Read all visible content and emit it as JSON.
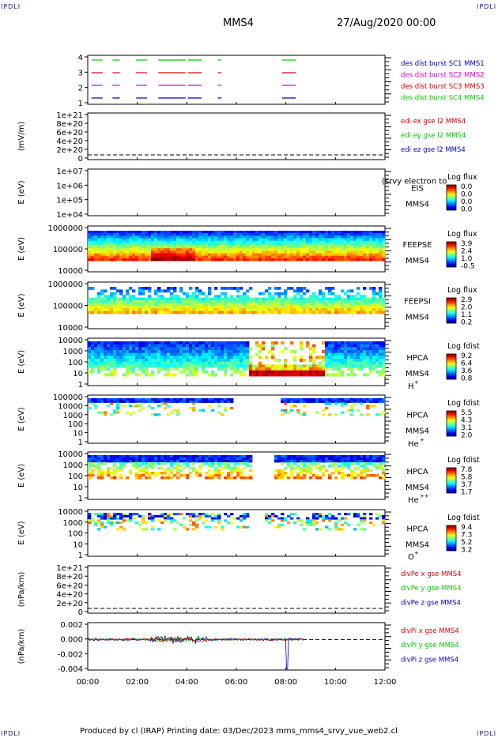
{
  "corners": {
    "label": "IPDLI"
  },
  "header": {
    "spacecraft": "MMS4",
    "date": "27/Aug/2020 00:00"
  },
  "footer": {
    "text": "Produced by cl (IRAP)   Printing date: 03/Dec/2023   mms_mms4_srvy_vue_web2.cl"
  },
  "colors": {
    "red": "#dd0000",
    "green": "#00cc00",
    "blue": "#0000cc",
    "magenta": "#dd00dd"
  },
  "time_axis": {
    "ticks": [
      "00:00",
      "02:00",
      "04:00",
      "06:00",
      "08:00",
      "10:00",
      "12:00"
    ],
    "range_hours": [
      0,
      12
    ]
  },
  "panels": [
    {
      "id": "burst",
      "type": "timeline",
      "ylabel": "",
      "yticks": [
        "4",
        "3",
        "2",
        "1"
      ],
      "legend": [
        {
          "text": "des dist burst SC1 MMS1",
          "color": "#0000cc"
        },
        {
          "text": "des dist burst SC2 MMS2",
          "color": "#dd00dd"
        },
        {
          "text": "des dist burst SC3 MMS3",
          "color": "#dd0000"
        },
        {
          "text": "des dist burst SC4 MMS4",
          "color": "#00cc00"
        }
      ],
      "burst_intervals_hours": [
        [
          0.15,
          0.6
        ],
        [
          1.0,
          1.3
        ],
        [
          1.95,
          2.4
        ],
        [
          2.85,
          3.95
        ],
        [
          4.05,
          4.6
        ],
        [
          5.25,
          5.4
        ],
        [
          7.85,
          8.4
        ]
      ],
      "row_colors": [
        "#00cc00",
        "#dd0000",
        "#dd00dd",
        "#0000cc"
      ]
    },
    {
      "id": "edi",
      "type": "line",
      "ylabel": "(mV/m)",
      "yticks": [
        "1e+21",
        "8e+20",
        "6e+20",
        "4e+20",
        "2e+20",
        "0"
      ],
      "legend": [
        {
          "text": "edi ex gse l2 MMS4",
          "color": "#dd0000"
        },
        {
          "text": "edi ey gse l2 MMS4",
          "color": "#00cc00"
        },
        {
          "text": "edi ez gse l2 MMS4",
          "color": "#0000cc"
        }
      ]
    },
    {
      "id": "eis",
      "type": "spectrogram",
      "ylabel": "E (eV)",
      "yticks": [
        "1e+07",
        "1e+06",
        "1e+05",
        "1e+04"
      ],
      "instrument": "EIS",
      "overlay": "(srvy electron to",
      "sc": "MMS4",
      "cbar_title": "Log flux",
      "cbar_ticks": [
        "0.0",
        "0.0",
        "0.0",
        "0.0"
      ]
    },
    {
      "id": "feepse",
      "type": "spectrogram",
      "ylabel": "E (eV)",
      "yticks": [
        "1000000",
        "100000",
        "10000"
      ],
      "instrument": "FEEPSE",
      "sc": "MMS4",
      "cbar_title": "Log flux",
      "cbar_ticks": [
        "3.9",
        "2.4",
        "1.0",
        "-0.5"
      ]
    },
    {
      "id": "feepsi",
      "type": "spectrogram",
      "ylabel": "E (eV)",
      "yticks": [
        "1000000",
        "100000",
        "10000"
      ],
      "instrument": "FEEPSI",
      "sc": "MMS4",
      "cbar_title": "Log flux",
      "cbar_ticks": [
        "2.9",
        "2.0",
        "1.1",
        "0.2"
      ]
    },
    {
      "id": "hpca_h",
      "type": "spectrogram",
      "ylabel": "E (eV)",
      "yticks": [
        "10000",
        "1000",
        "100",
        "10",
        "1"
      ],
      "instrument": "HPCA",
      "sc": "MMS4",
      "species": "H",
      "charge": "+",
      "cbar_title": "Log fdist",
      "cbar_ticks": [
        "9.2",
        "6.4",
        "3.6",
        "0.8"
      ]
    },
    {
      "id": "hpca_he",
      "type": "spectrogram",
      "ylabel": "E (eV)",
      "yticks": [
        "100000",
        "10000",
        "1000",
        "100",
        "10",
        "1"
      ],
      "instrument": "HPCA",
      "sc": "MMS4",
      "species": "He",
      "charge": "+",
      "cbar_title": "Log fdist",
      "cbar_ticks": [
        "5.5",
        "4.3",
        "3.1",
        "2.0"
      ]
    },
    {
      "id": "hpca_hepp",
      "type": "spectrogram",
      "ylabel": "E (eV)",
      "yticks": [
        "10000",
        "1000",
        "100",
        "10",
        "1"
      ],
      "instrument": "HPCA",
      "sc": "MMS4",
      "species": "He",
      "charge": "++",
      "cbar_title": "Log fdist",
      "cbar_ticks": [
        "7.8",
        "5.8",
        "3.7",
        "1.7"
      ]
    },
    {
      "id": "hpca_o",
      "type": "spectrogram",
      "ylabel": "E (eV)",
      "yticks": [
        "10000",
        "1000",
        "100",
        "10",
        "1"
      ],
      "instrument": "HPCA",
      "sc": "MMS4",
      "species": "O",
      "charge": "+",
      "cbar_title": "Log fdist",
      "cbar_ticks": [
        "9.4",
        "7.3",
        "5.2",
        "3.2"
      ]
    },
    {
      "id": "divpe1",
      "type": "line",
      "ylabel": "(nPa/km)",
      "yticks": [
        "1e+21",
        "8e+20",
        "6e+20",
        "4e+20",
        "2e+20",
        "0"
      ],
      "legend": [
        {
          "text": "divPe x gse MMS4",
          "color": "#dd0000"
        },
        {
          "text": "divPe y gse MMS4",
          "color": "#00cc00"
        },
        {
          "text": "divPe z gse MMS4",
          "color": "#0000cc"
        }
      ]
    },
    {
      "id": "divpi",
      "type": "line",
      "ylabel": "(nPa/km)",
      "yticks": [
        "0.002",
        "0.000",
        "-0.002",
        "-0.004"
      ],
      "legend": [
        {
          "text": "divPi x gse MMS4",
          "color": "#dd0000"
        },
        {
          "text": "divPi y gse MMS4",
          "color": "#00cc00"
        },
        {
          "text": "divPi z gse MMS4",
          "color": "#0000cc"
        }
      ]
    }
  ],
  "chart_data": {
    "type": "heatmap",
    "title": "MMS4",
    "xlabel": "",
    "x_ticks": [
      "00:00",
      "02:00",
      "04:00",
      "06:00",
      "08:00",
      "10:00",
      "12:00"
    ],
    "series": [
      {
        "name": "des dist burst SC4 MMS4",
        "intervals_hours": [
          [
            0.15,
            0.6
          ],
          [
            1.0,
            1.3
          ],
          [
            1.95,
            2.4
          ],
          [
            2.85,
            3.95
          ],
          [
            4.05,
            4.6
          ],
          [
            5.25,
            5.4
          ],
          [
            7.85,
            8.4
          ]
        ]
      },
      {
        "name": "divPi z gse MMS4",
        "ylim": [
          -0.005,
          0.003
        ],
        "notable_min": {
          "x_hour": 8.05,
          "y": -0.0043
        }
      }
    ],
    "data_gaps_hours": [
      [
        6.5,
        7.0
      ],
      [
        8.7,
        12.0
      ]
    ]
  }
}
